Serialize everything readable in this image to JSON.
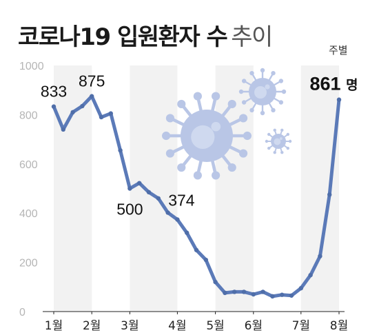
{
  "title_bold": "코로나19 입원환자 수",
  "title_light": "추이",
  "unit_label": "주별",
  "colors": {
    "line": "#5b7ab8",
    "marker": "#4f6ea9",
    "stripe": "#f2f2f2",
    "virus": "#b9c6e6"
  },
  "chart_data": {
    "type": "line",
    "title": "코로나19 입원환자 수 추이",
    "xlabel": "",
    "ylabel": "",
    "ylim": [
      0,
      1000
    ],
    "yticks": [
      "0",
      "200",
      "400",
      "600",
      "800",
      "1000"
    ],
    "yticks_values": [
      0,
      200,
      400,
      600,
      800,
      1000
    ],
    "grid": false,
    "x_unit": "week",
    "month_ticks": [
      {
        "label": "1월",
        "week": 1
      },
      {
        "label": "2월",
        "week": 5
      },
      {
        "label": "3월",
        "week": 9
      },
      {
        "label": "4월",
        "week": 14
      },
      {
        "label": "5월",
        "week": 18
      },
      {
        "label": "6월",
        "week": 22
      },
      {
        "label": "7월",
        "week": 27
      },
      {
        "label": "8월",
        "week": 31
      }
    ],
    "series": [
      {
        "values": [
          833,
          740,
          810,
          835,
          875,
          790,
          805,
          655,
          500,
          522,
          485,
          460,
          402,
          374,
          320,
          250,
          210,
          120,
          76,
          80,
          80,
          70,
          80,
          62,
          68,
          65,
          95,
          148,
          225,
          475,
          861
        ]
      }
    ],
    "annotations": [
      {
        "index": 0,
        "text": "833"
      },
      {
        "index": 4,
        "text": "875"
      },
      {
        "index": 8,
        "text": "500"
      },
      {
        "index": 13,
        "text": "374"
      },
      {
        "index": 30,
        "text": "861",
        "suffix": "명"
      }
    ]
  }
}
